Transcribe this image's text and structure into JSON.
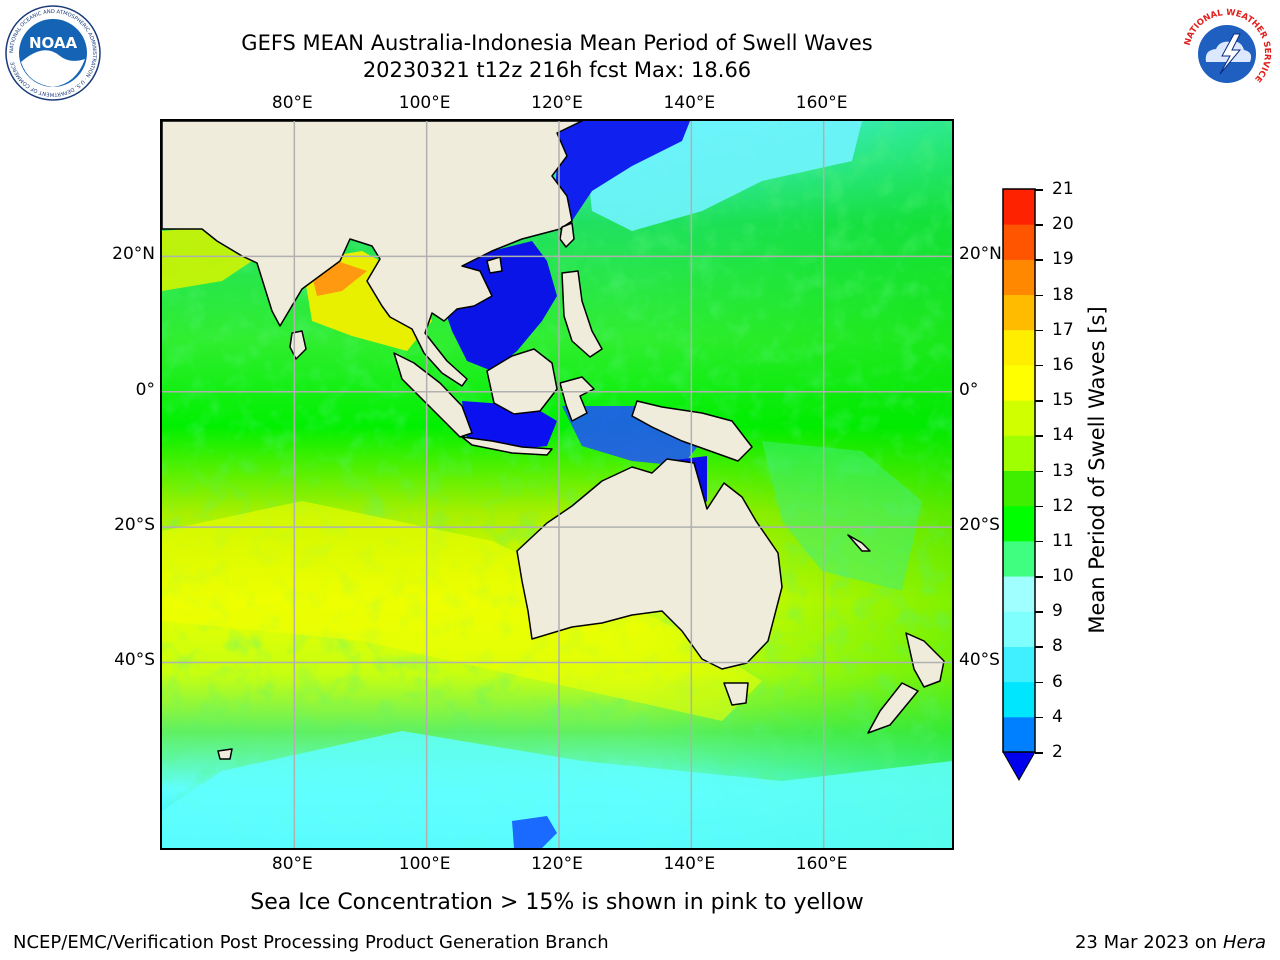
{
  "header": {
    "title_line1": "GEFS MEAN Australia-Indonesia Mean Period of Swell Waves",
    "title_line2": "20230321 t12z 216h fcst   Max: 18.66"
  },
  "map": {
    "lon_range": [
      60,
      180
    ],
    "lat_range": [
      -68,
      40
    ],
    "lon_ticks": [
      {
        "value": 80,
        "label": "80°E"
      },
      {
        "value": 100,
        "label": "100°E"
      },
      {
        "value": 120,
        "label": "120°E"
      },
      {
        "value": 140,
        "label": "140°E"
      },
      {
        "value": 160,
        "label": "160°E"
      }
    ],
    "lat_ticks": [
      {
        "value": 20,
        "label": "20°N"
      },
      {
        "value": 0,
        "label": "0°"
      },
      {
        "value": -20,
        "label": "20°S"
      },
      {
        "value": -40,
        "label": "40°S"
      }
    ],
    "grid_color": "#b0b0b0",
    "land_color": "#efecdc"
  },
  "colorbar": {
    "label": "Mean Period of Swell Waves [s]",
    "ticks": [
      "2",
      "4",
      "6",
      "8",
      "9",
      "10",
      "11",
      "12",
      "13",
      "14",
      "15",
      "16",
      "17",
      "18",
      "19",
      "20",
      "21"
    ],
    "colors": [
      "#0080ff",
      "#00e6ff",
      "#40f0ff",
      "#80ffff",
      "#a0ffff",
      "#40ff80",
      "#00ff00",
      "#40ee00",
      "#a0ff00",
      "#d0ff00",
      "#ffff00",
      "#ffee00",
      "#ffbb00",
      "#ff8800",
      "#ff5500",
      "#ff2200"
    ],
    "under_color": "#0000ee"
  },
  "footnote": "Sea Ice Concentration > 15% is shown in pink to yellow",
  "footer": {
    "credit": "NCEP/EMC/Verification Post Processing Product Generation Branch",
    "date": "23 Mar 2023 on",
    "host": "Hera"
  },
  "logos": {
    "noaa_text": "NOAA",
    "noaa_ring_text": "NATIONAL OCEANIC AND ATMOSPHERIC ADMINISTRATION · U.S. DEPARTMENT OF COMMERCE",
    "nws_ring_text": "NATIONAL WEATHER SERVICE"
  }
}
